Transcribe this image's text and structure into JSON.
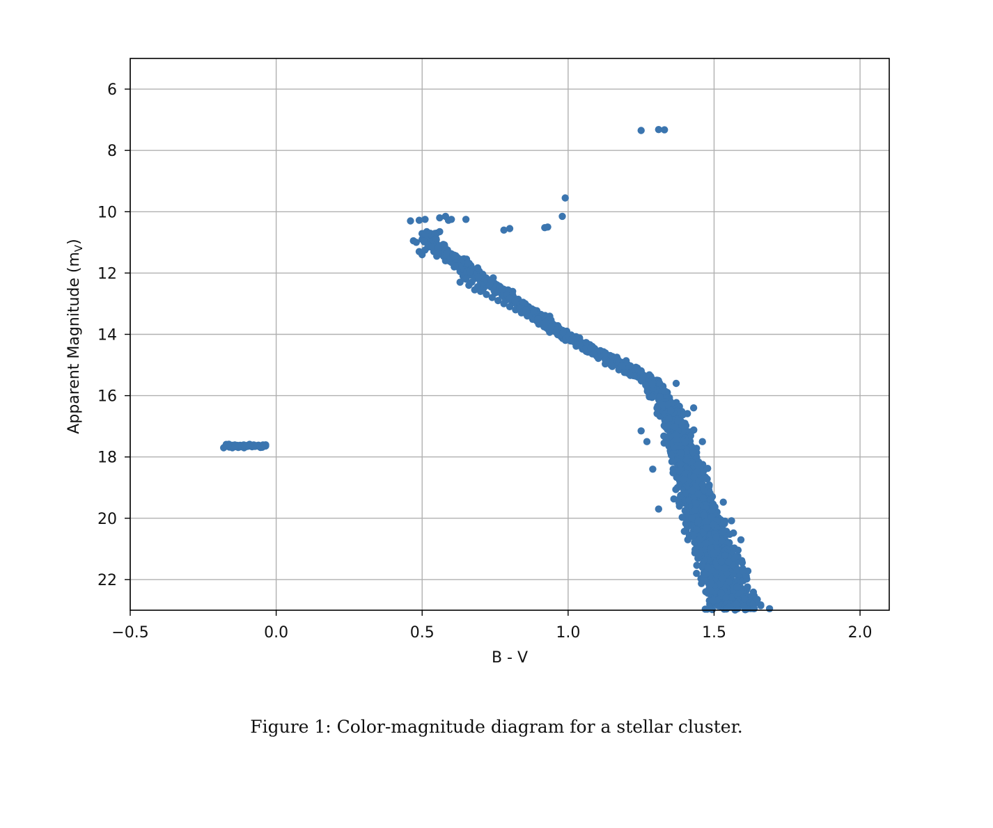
{
  "caption": "Figure 1: Color-magnitude diagram for a stellar cluster.",
  "colors": {
    "points": "#3b75af",
    "grid": "#b0b0b0",
    "axes": "#000000"
  },
  "chart_data": {
    "type": "scatter",
    "title": "",
    "xlabel": "B - V",
    "ylabel_main": "Apparent Magnitude (m",
    "ylabel_sub": "V",
    "ylabel_end": ")",
    "xlim": [
      -0.5,
      2.1
    ],
    "ylim": [
      23.0,
      5.0
    ],
    "y_inverted": true,
    "grid": true,
    "xticks": [
      -0.5,
      0.0,
      0.5,
      1.0,
      1.5,
      2.0
    ],
    "xtick_labels": [
      "−0.5",
      "0.0",
      "0.5",
      "1.0",
      "1.5",
      "2.0"
    ],
    "yticks": [
      6,
      8,
      10,
      12,
      14,
      16,
      18,
      20,
      22
    ],
    "ytick_labels": [
      "6",
      "8",
      "10",
      "12",
      "14",
      "16",
      "18",
      "20",
      "22"
    ],
    "series": [
      {
        "points": [
          [
            1.25,
            7.35
          ],
          [
            1.31,
            7.32
          ],
          [
            1.33,
            7.33
          ],
          [
            0.99,
            9.55
          ],
          [
            0.98,
            10.15
          ],
          [
            0.93,
            10.5
          ],
          [
            0.92,
            10.52
          ],
          [
            0.8,
            10.55
          ],
          [
            0.78,
            10.6
          ],
          [
            0.65,
            10.25
          ],
          [
            0.46,
            10.3
          ],
          [
            0.49,
            10.28
          ],
          [
            0.51,
            10.25
          ],
          [
            0.56,
            10.2
          ],
          [
            0.58,
            10.15
          ],
          [
            0.59,
            10.28
          ],
          [
            0.6,
            10.25
          ],
          [
            0.47,
            10.95
          ],
          [
            0.48,
            11.0
          ],
          [
            0.5,
            10.9
          ],
          [
            0.51,
            10.85
          ],
          [
            0.52,
            10.8
          ],
          [
            0.53,
            10.75
          ],
          [
            0.54,
            10.95
          ],
          [
            0.55,
            10.7
          ],
          [
            0.56,
            10.65
          ],
          [
            0.53,
            11.05
          ],
          [
            0.52,
            11.15
          ],
          [
            0.49,
            11.3
          ],
          [
            0.5,
            11.4
          ],
          [
            0.51,
            11.25
          ],
          [
            0.54,
            11.3
          ],
          [
            0.55,
            11.45
          ],
          [
            0.57,
            11.4
          ],
          [
            0.58,
            11.6
          ],
          [
            0.59,
            11.5
          ],
          [
            0.6,
            11.65
          ],
          [
            0.61,
            11.8
          ],
          [
            0.62,
            11.75
          ],
          [
            0.63,
            11.95
          ],
          [
            0.64,
            12.1
          ],
          [
            0.63,
            12.3
          ],
          [
            0.65,
            12.2
          ],
          [
            0.66,
            12.4
          ],
          [
            0.67,
            12.3
          ],
          [
            0.68,
            12.55
          ],
          [
            0.69,
            12.45
          ],
          [
            0.7,
            12.6
          ],
          [
            0.71,
            12.5
          ],
          [
            0.72,
            12.7
          ],
          [
            0.74,
            12.8
          ],
          [
            0.75,
            12.65
          ],
          [
            0.76,
            12.9
          ],
          [
            0.78,
            13.0
          ],
          [
            0.79,
            12.85
          ],
          [
            0.8,
            13.1
          ],
          [
            0.81,
            12.6
          ],
          [
            0.82,
            13.2
          ],
          [
            0.84,
            13.3
          ],
          [
            0.85,
            13.15
          ],
          [
            0.86,
            13.4
          ],
          [
            0.88,
            13.45
          ],
          [
            0.9,
            13.5
          ],
          [
            0.91,
            13.65
          ],
          [
            0.92,
            13.55
          ],
          [
            0.93,
            13.8
          ],
          [
            0.94,
            13.7
          ],
          [
            0.96,
            13.85
          ],
          [
            0.98,
            13.95
          ],
          [
            0.99,
            14.05
          ],
          [
            1.0,
            14.1
          ],
          [
            1.02,
            14.2
          ],
          [
            1.03,
            14.35
          ],
          [
            1.05,
            14.4
          ],
          [
            1.07,
            14.5
          ],
          [
            1.09,
            14.6
          ],
          [
            1.1,
            14.55
          ],
          [
            1.12,
            14.7
          ],
          [
            1.14,
            14.8
          ],
          [
            1.15,
            14.95
          ],
          [
            1.17,
            15.0
          ],
          [
            1.19,
            15.1
          ],
          [
            1.2,
            15.25
          ],
          [
            1.22,
            15.3
          ],
          [
            1.24,
            15.4
          ],
          [
            1.25,
            15.5
          ],
          [
            1.27,
            15.45
          ],
          [
            1.28,
            15.7
          ],
          [
            1.3,
            15.8
          ],
          [
            1.31,
            15.95
          ],
          [
            1.33,
            16.1
          ],
          [
            1.25,
            17.15
          ],
          [
            1.27,
            17.5
          ],
          [
            1.29,
            18.4
          ],
          [
            1.31,
            19.7
          ],
          [
            1.33,
            16.5
          ],
          [
            1.34,
            16.8
          ],
          [
            1.35,
            17.2
          ],
          [
            1.36,
            17.6
          ],
          [
            1.37,
            18.0
          ],
          [
            1.38,
            18.4
          ],
          [
            1.39,
            18.8
          ],
          [
            1.4,
            19.2
          ],
          [
            1.41,
            19.6
          ],
          [
            1.42,
            20.0
          ],
          [
            1.43,
            20.4
          ],
          [
            1.44,
            20.8
          ],
          [
            1.45,
            21.2
          ],
          [
            1.46,
            21.6
          ],
          [
            1.48,
            22.0
          ],
          [
            1.5,
            22.3
          ],
          [
            1.52,
            22.6
          ],
          [
            1.55,
            22.8
          ],
          [
            1.58,
            22.95
          ],
          [
            1.62,
            22.9
          ],
          [
            1.66,
            22.85
          ],
          [
            1.69,
            22.95
          ],
          [
            1.57,
            21.5
          ],
          [
            1.54,
            20.8
          ],
          [
            1.51,
            19.8
          ],
          [
            1.48,
            19.0
          ],
          [
            1.46,
            17.5
          ],
          [
            1.43,
            16.4
          ],
          [
            1.37,
            15.6
          ],
          [
            1.4,
            16.9
          ],
          [
            1.35,
            17.8
          ],
          [
            1.38,
            19.5
          ],
          [
            1.41,
            20.7
          ],
          [
            1.44,
            21.8
          ]
        ]
      },
      {
        "points": [
          [
            -0.18,
            17.7
          ],
          [
            -0.17,
            17.65
          ],
          [
            -0.16,
            17.68
          ],
          [
            -0.15,
            17.7
          ],
          [
            -0.14,
            17.66
          ],
          [
            -0.13,
            17.69
          ],
          [
            -0.12,
            17.65
          ],
          [
            -0.11,
            17.7
          ],
          [
            -0.1,
            17.66
          ],
          [
            -0.09,
            17.64
          ],
          [
            -0.08,
            17.63
          ],
          [
            -0.07,
            17.65
          ],
          [
            -0.06,
            17.62
          ],
          [
            -0.05,
            17.63
          ],
          [
            -0.04,
            17.64
          ]
        ]
      }
    ]
  }
}
